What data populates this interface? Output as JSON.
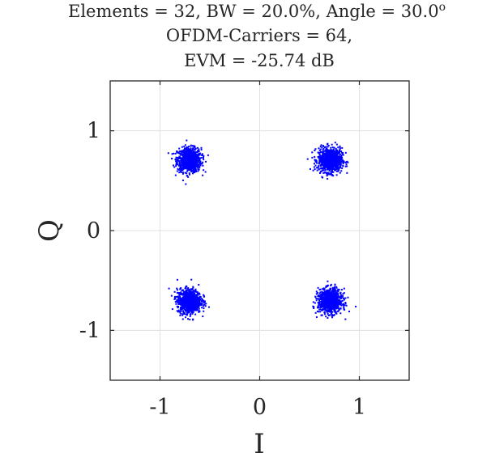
{
  "chart_data": {
    "type": "scatter",
    "title_lines": [
      "Elements = 32, BW = 20.0%, Angle = 30.0",
      "OFDM-Carriers = 64,",
      "EVM = -25.74 dB"
    ],
    "title_superscript": "o",
    "xlabel": "I",
    "ylabel": "Q",
    "xlim": [
      -1.5,
      1.5
    ],
    "ylim": [
      -1.5,
      1.5
    ],
    "xticks": [
      -1,
      0,
      1
    ],
    "yticks": [
      -1,
      0,
      1
    ],
    "xtick_labels": [
      "-1",
      "0",
      "1"
    ],
    "ytick_labels": [
      "-1",
      "0",
      "1"
    ],
    "grid": true,
    "marker_color": "#0000ff",
    "clusters": [
      {
        "center": [
          -0.707,
          0.707
        ],
        "spread": 0.06
      },
      {
        "center": [
          0.707,
          0.707
        ],
        "spread": 0.06
      },
      {
        "center": [
          -0.707,
          -0.707
        ],
        "spread": 0.06
      },
      {
        "center": [
          0.707,
          -0.707
        ],
        "spread": 0.06
      }
    ],
    "points_per_cluster": 900
  }
}
